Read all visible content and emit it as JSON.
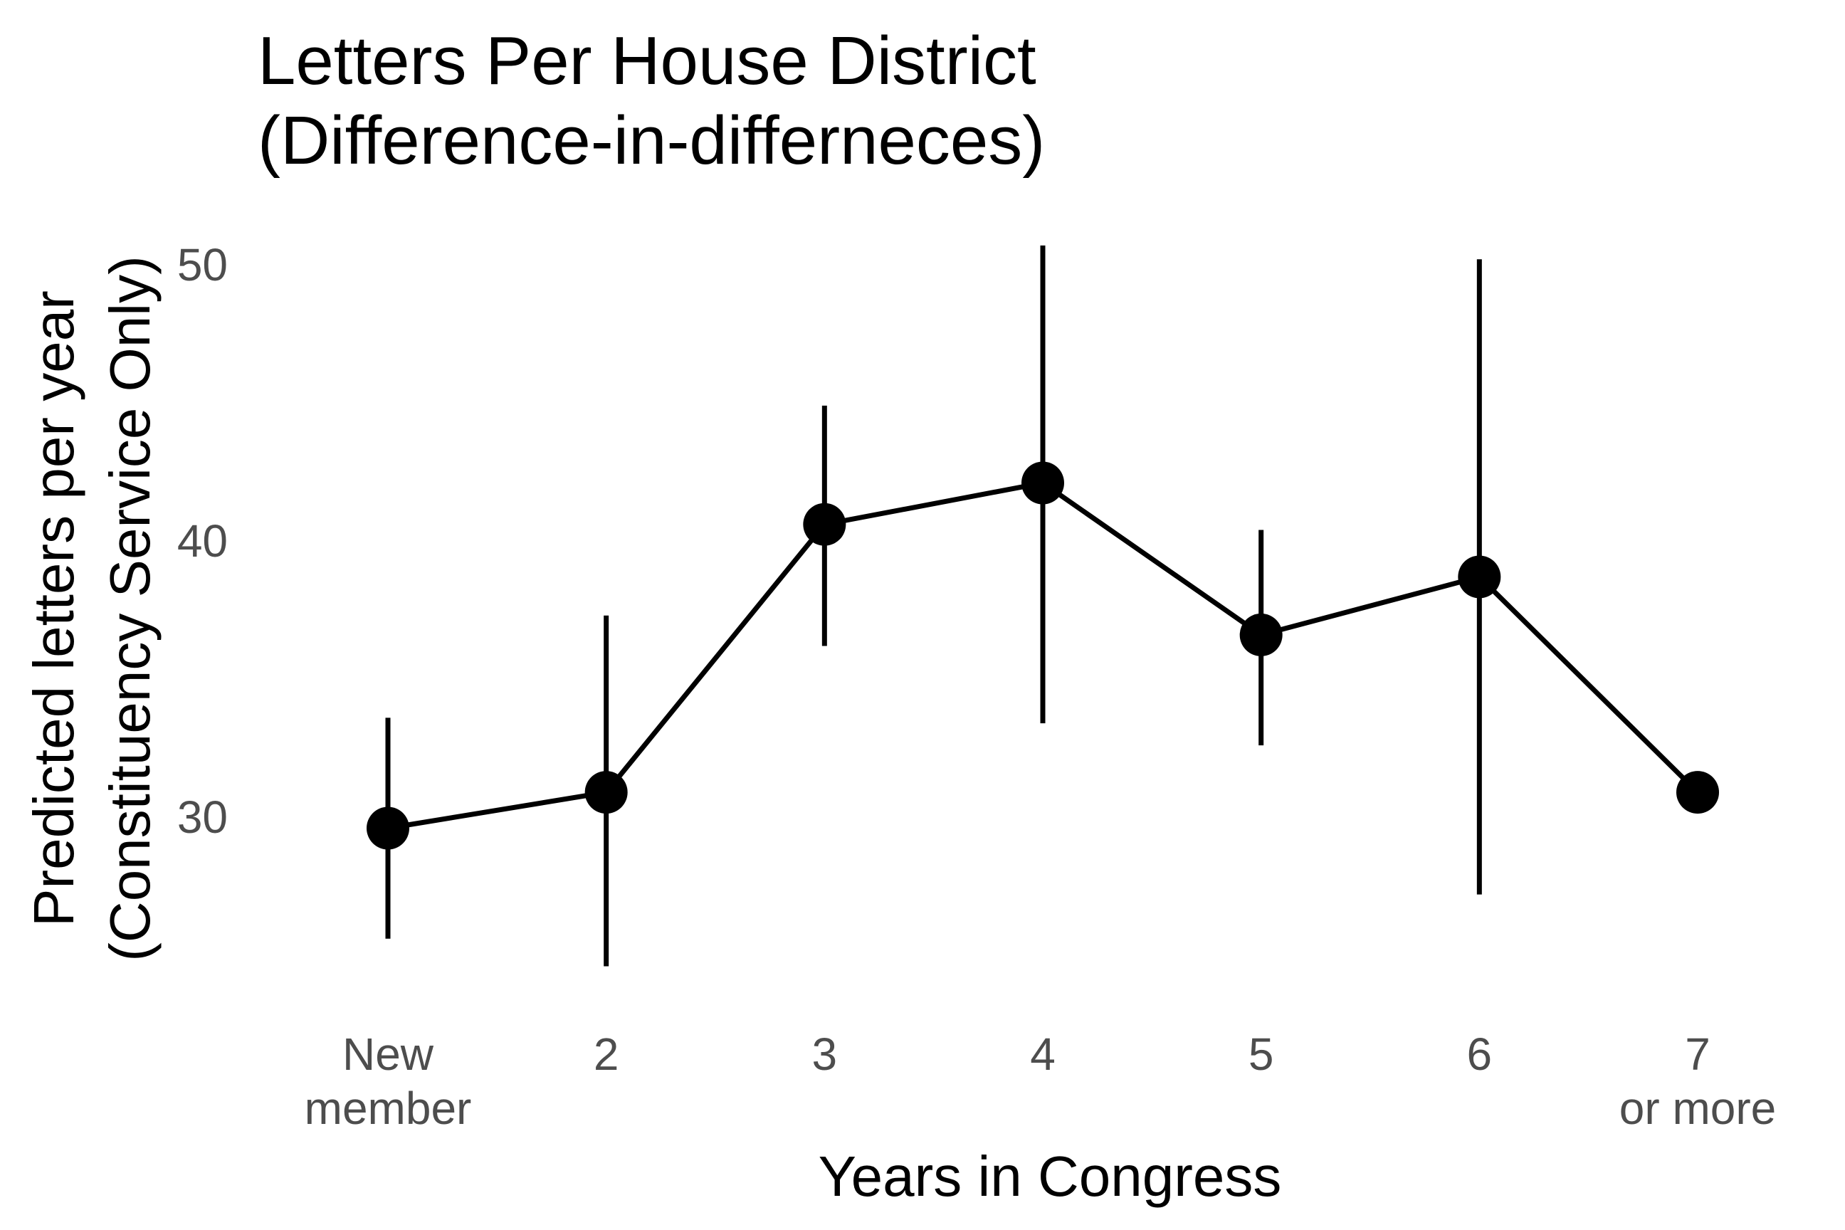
{
  "chart_data": {
    "type": "line",
    "title_lines": [
      "Letters Per House District",
      "(Difference-in-differneces)"
    ],
    "xlabel": "Years in Congress",
    "ylabel_lines": [
      "Predicted letters per year",
      "(Constituency Service Only)"
    ],
    "categories": [
      [
        "New",
        "member"
      ],
      [
        "2"
      ],
      [
        "3"
      ],
      [
        "4"
      ],
      [
        "5"
      ],
      [
        "6"
      ],
      [
        "7",
        "or more"
      ]
    ],
    "values": [
      29.6,
      30.9,
      40.6,
      42.1,
      36.6,
      38.7,
      30.9
    ],
    "error_low": [
      25.6,
      24.6,
      36.2,
      33.4,
      32.6,
      27.2,
      30.9
    ],
    "error_high": [
      33.6,
      37.3,
      44.9,
      50.7,
      40.4,
      50.2,
      30.9
    ],
    "yticks": [
      30,
      40,
      50
    ],
    "ylim": [
      23.5,
      52
    ],
    "grid": false,
    "legend": "none",
    "color": "#000000"
  }
}
